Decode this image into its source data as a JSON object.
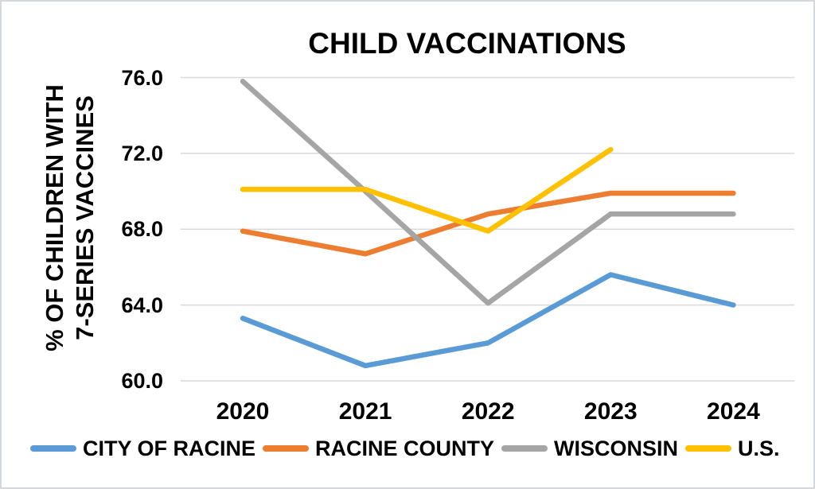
{
  "chart_data": {
    "type": "line",
    "title": "CHILD VACCINATIONS",
    "ylabel": "% OF CHILDREN WITH 7-SERIES VACCINES",
    "ylabel_lines": [
      "% OF CHILDREN WITH",
      "7-SERIES VACCINES"
    ],
    "xlabel": "",
    "categories": [
      "2020",
      "2021",
      "2022",
      "2023",
      "2024"
    ],
    "yticks": [
      76.0,
      72.0,
      68.0,
      64.0,
      60.0
    ],
    "ytick_labels": [
      "76.0",
      "72.0",
      "68.0",
      "64.0",
      "60.0"
    ],
    "ylim": [
      60.0,
      76.0
    ],
    "grid": true,
    "legend_position": "bottom",
    "series": [
      {
        "name": "CITY OF RACINE",
        "color": "#5B9BD5",
        "values": [
          63.3,
          60.8,
          62.0,
          65.6,
          64.0
        ]
      },
      {
        "name": "RACINE COUNTY",
        "color": "#ED7D31",
        "values": [
          67.9,
          66.7,
          68.8,
          69.9,
          69.9
        ]
      },
      {
        "name": "WISCONSIN",
        "color": "#A5A5A5",
        "values": [
          75.8,
          70.0,
          64.1,
          68.8,
          68.8
        ]
      },
      {
        "name": "U.S.",
        "color": "#FFC000",
        "values": [
          70.1,
          70.1,
          67.9,
          72.2,
          null
        ]
      }
    ]
  },
  "colors": {
    "gridline": "#D9D9D9",
    "text": "#000000",
    "background": "#FFFFFF",
    "frame_border": "#D5D8DB"
  }
}
